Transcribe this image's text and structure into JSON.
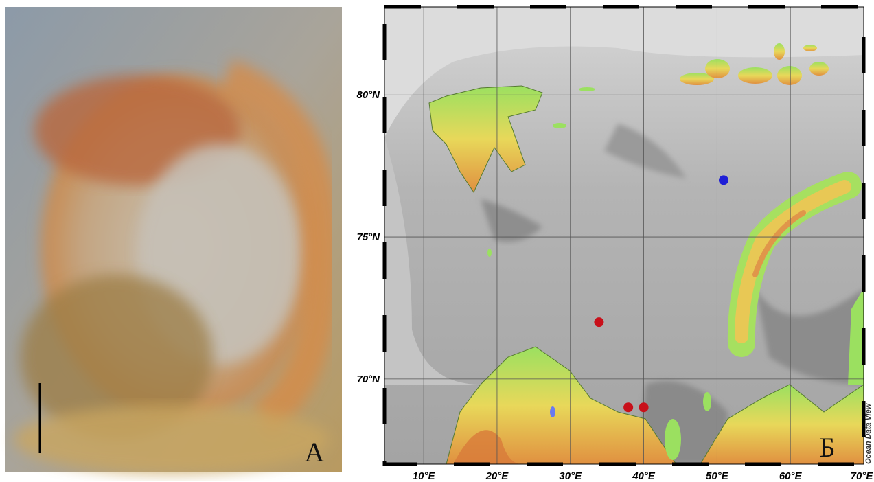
{
  "photo_panel": {
    "label": "А"
  },
  "map_panel": {
    "label": "Б",
    "credit": "Ocean Data View",
    "lon_range": [
      4.65,
      70
    ],
    "lat_range": [
      67,
      83.1
    ],
    "lon_ticks": [
      {
        "value": 10,
        "label": "10°E"
      },
      {
        "value": 20,
        "label": "20°E"
      },
      {
        "value": 30,
        "label": "30°E"
      },
      {
        "value": 40,
        "label": "40°E"
      },
      {
        "value": 50,
        "label": "50°E"
      },
      {
        "value": 60,
        "label": "60°E"
      },
      {
        "value": 70,
        "label": "70°E"
      }
    ],
    "lat_ticks": [
      {
        "value": 70,
        "label": "70°N"
      },
      {
        "value": 75,
        "label": "75°N"
      },
      {
        "value": 80,
        "label": "80°N"
      }
    ],
    "stations": [
      {
        "lon": 50.9,
        "lat": 77.0,
        "color": "#1f1fd6"
      },
      {
        "lon": 33.9,
        "lat": 72.0,
        "color": "#c8101a"
      },
      {
        "lon": 37.9,
        "lat": 69.0,
        "color": "#c8101a"
      },
      {
        "lon": 40.0,
        "lat": 69.0,
        "color": "#c8101a"
      }
    ]
  }
}
